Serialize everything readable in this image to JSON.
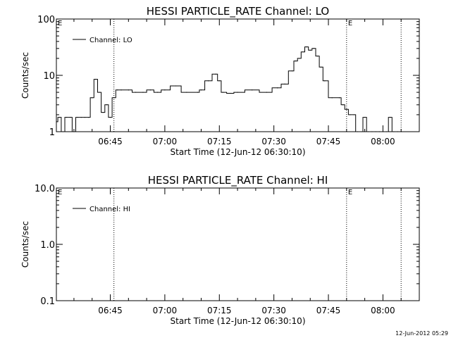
{
  "footer": {
    "timestamp": "12-Jun-2012 05:29"
  },
  "chart_data": [
    {
      "type": "line",
      "title": "HESSI PARTICLE_RATE Channel: LO",
      "xlabel": "Start Time (12-Jun-12 06:30:10)",
      "ylabel": "Counts/sec",
      "yscale": "log",
      "xlim": [
        "06:30:10",
        "08:10:00"
      ],
      "ylim": [
        1,
        100
      ],
      "x_ticks": [
        "06:45",
        "07:00",
        "07:15",
        "07:30",
        "07:45",
        "08:00"
      ],
      "y_ticks": [
        "1",
        "10",
        "100"
      ],
      "legend_position": "top-left",
      "vlines": [
        {
          "x": "06:46:00",
          "label": ""
        },
        {
          "x": "07:50:00",
          "label": "E"
        },
        {
          "x": "08:05:00",
          "label": ""
        }
      ],
      "edge_label": "E",
      "series": [
        {
          "name": "Channel: LO",
          "x": [
            "06:30:10",
            "06:31",
            "06:32",
            "06:33",
            "06:34",
            "06:35",
            "06:36",
            "06:37",
            "06:38",
            "06:39",
            "06:40",
            "06:41",
            "06:42",
            "06:43",
            "06:44",
            "06:45",
            "06:46",
            "06:47",
            "06:48",
            "06:50",
            "06:52",
            "06:54",
            "06:56",
            "06:58",
            "07:00",
            "07:03",
            "07:06",
            "07:09",
            "07:10",
            "07:12",
            "07:14",
            "07:15",
            "07:16",
            "07:18",
            "07:20",
            "07:24",
            "07:28",
            "07:31",
            "07:33",
            "07:35",
            "07:36",
            "07:37",
            "07:38",
            "07:39",
            "07:40",
            "07:41",
            "07:42",
            "07:43",
            "07:44",
            "07:46",
            "07:48",
            "07:49",
            "07:50",
            "07:51",
            "07:52",
            "07:53",
            "07:54",
            "07:55",
            "07:56",
            "07:57",
            "07:58",
            "07:59",
            "08:00",
            "08:01",
            "08:02",
            "08:03",
            "08:04",
            "08:05"
          ],
          "y": [
            1.5,
            1.8,
            1.0,
            1.8,
            1.8,
            1.0,
            1.8,
            1.8,
            1.8,
            1.8,
            4.0,
            8.5,
            5.0,
            2.2,
            3.0,
            1.8,
            4.0,
            5.5,
            5.5,
            5.5,
            5.0,
            5.0,
            5.5,
            5.0,
            5.5,
            6.5,
            5.0,
            5.0,
            5.5,
            8.0,
            10.5,
            8.0,
            5.0,
            4.8,
            5.0,
            5.5,
            5.0,
            6.0,
            7.0,
            12.0,
            18.0,
            20.0,
            26.0,
            32.0,
            28.0,
            30.0,
            22.0,
            14.0,
            8.0,
            4.0,
            4.0,
            3.0,
            2.5,
            2.0,
            2.0,
            1.0,
            1.0,
            1.8,
            1.0,
            1.0,
            1.0,
            1.0,
            1.0,
            1.0,
            1.8,
            1.0,
            1.0,
            1.0
          ]
        }
      ]
    },
    {
      "type": "line",
      "title": "HESSI PARTICLE_RATE Channel: HI",
      "xlabel": "Start Time (12-Jun-12 06:30:10)",
      "ylabel": "Counts/sec",
      "yscale": "log",
      "xlim": [
        "06:30:10",
        "08:10:00"
      ],
      "ylim": [
        0.1,
        10
      ],
      "x_ticks": [
        "06:45",
        "07:00",
        "07:15",
        "07:30",
        "07:45",
        "08:00"
      ],
      "y_ticks": [
        "0.1",
        "1.0",
        "10.0"
      ],
      "legend_position": "top-left",
      "vlines": [
        {
          "x": "06:46:00",
          "label": ""
        },
        {
          "x": "07:50:00",
          "label": "E"
        },
        {
          "x": "08:05:00",
          "label": ""
        }
      ],
      "edge_label": "E",
      "series": [
        {
          "name": "Channel: HI",
          "x": [],
          "y": []
        }
      ]
    }
  ]
}
